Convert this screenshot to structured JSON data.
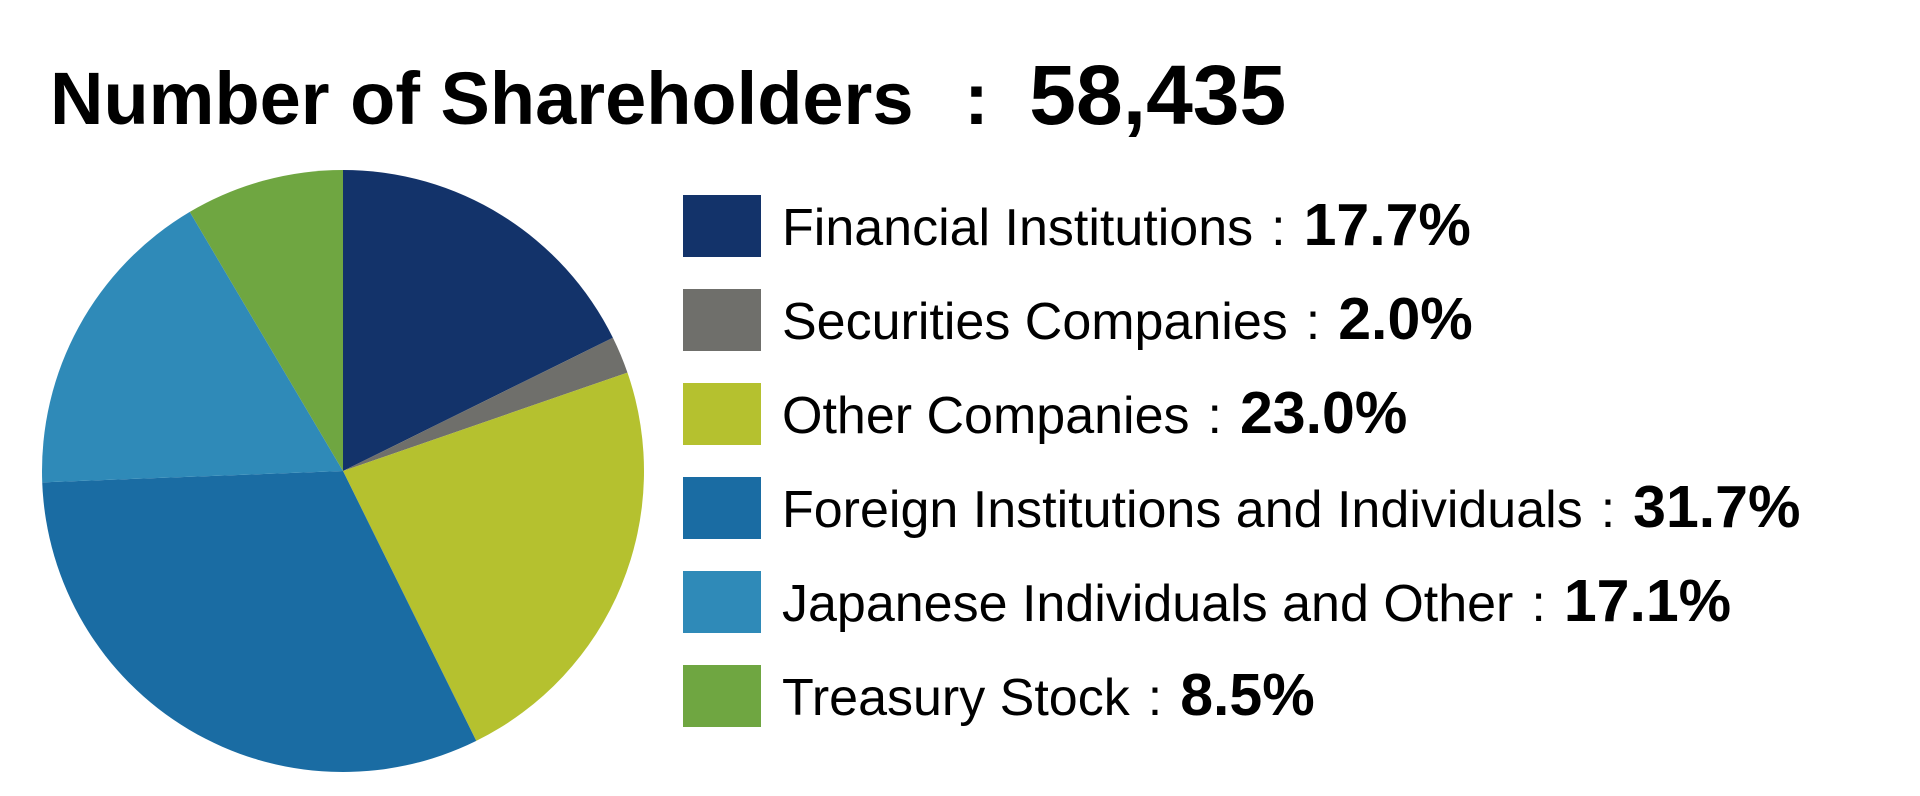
{
  "chart_data": {
    "type": "pie",
    "title": "Number of Shareholders",
    "separator": ":",
    "total": "58,435",
    "categories": [
      "Financial Institutions",
      "Securities Companies",
      "Other Companies",
      "Foreign Institutions and Individuals",
      "Japanese Individuals and Other",
      "Treasury Stock"
    ],
    "values": [
      17.7,
      2.0,
      23.0,
      31.7,
      17.1,
      8.5
    ],
    "value_labels": [
      "17.7%",
      "2.0%",
      "23.0%",
      "31.7%",
      "17.1%",
      "8.5%"
    ],
    "colors": [
      "#13336a",
      "#6f6f6b",
      "#b5c12f",
      "#1a6ca3",
      "#2f8ab8",
      "#6fa641"
    ],
    "legend": "right"
  }
}
